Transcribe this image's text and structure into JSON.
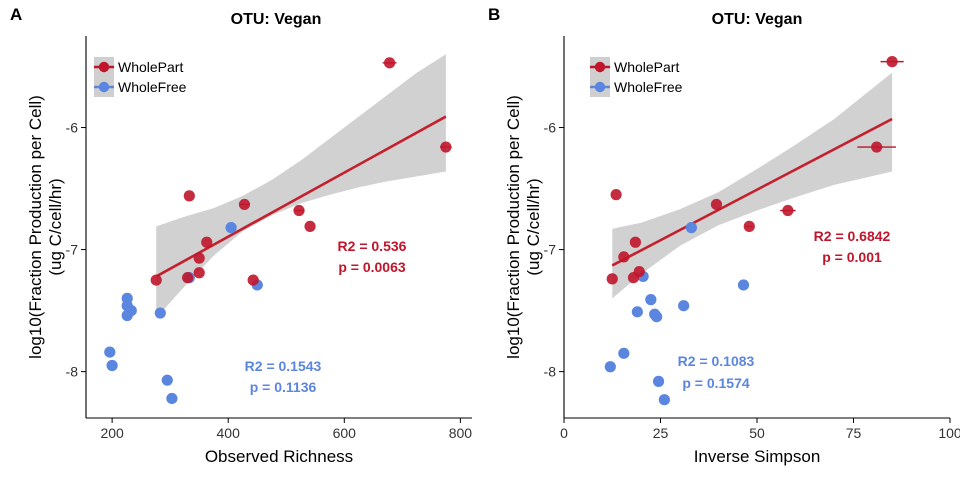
{
  "colors": {
    "part": "#c0152a",
    "free": "#5b86e0",
    "band": "#cfcfcf",
    "part_line": "#c41f2d"
  },
  "chart_data": [
    {
      "type": "scatter",
      "panel_tag": "A",
      "title": "OTU: Vegan",
      "xlabel": "Observed Richness",
      "ylabel_lines": [
        "log10(Fraction Production per Cell)",
        "(ug C/cell/hr)"
      ],
      "xlim": [
        155,
        820
      ],
      "ylim": [
        -8.38,
        -5.25
      ],
      "xticks": [
        200,
        400,
        600,
        800
      ],
      "yticks": [
        -6,
        -7,
        -8
      ],
      "legend": {
        "position": "top-left",
        "entries": [
          "WholePart",
          "WholeFree"
        ]
      },
      "series": [
        {
          "name": "WholePart",
          "color_key": "part",
          "points": [
            {
              "x": 678,
              "y": -5.47,
              "xerr": 12
            },
            {
              "x": 775,
              "y": -6.16,
              "xerr": 10
            },
            {
              "x": 333,
              "y": -6.56,
              "xerr": 0
            },
            {
              "x": 428,
              "y": -6.63,
              "xerr": 8
            },
            {
              "x": 522,
              "y": -6.68,
              "xerr": 9
            },
            {
              "x": 541,
              "y": -6.81,
              "xerr": 0
            },
            {
              "x": 363,
              "y": -6.94,
              "xerr": 0
            },
            {
              "x": 350,
              "y": -7.07,
              "xerr": 0
            },
            {
              "x": 350,
              "y": -7.19,
              "xerr": 0
            },
            {
              "x": 330,
              "y": -7.23,
              "xerr": 0
            },
            {
              "x": 276,
              "y": -7.25,
              "xerr": 0
            },
            {
              "x": 443,
              "y": -7.25,
              "xerr": 0
            }
          ],
          "fit": {
            "x": [
              276,
              775
            ],
            "y": [
              -7.22,
              -5.91
            ]
          },
          "band": {
            "x": [
              276,
              325,
              375,
              425,
              475,
              525,
              575,
              625,
              675,
              725,
              775
            ],
            "lower": [
              -7.56,
              -7.3,
              -7.05,
              -6.85,
              -6.72,
              -6.62,
              -6.55,
              -6.49,
              -6.44,
              -6.4,
              -6.36
            ],
            "upper": [
              -6.81,
              -6.73,
              -6.66,
              -6.56,
              -6.43,
              -6.27,
              -6.09,
              -5.91,
              -5.73,
              -5.55,
              -5.4
            ]
          },
          "annotation": [
            "R2 = 0.536",
            "p = 0.0063"
          ]
        },
        {
          "name": "WholeFree",
          "color_key": "free",
          "points": [
            {
              "x": 226,
              "y": -7.4
            },
            {
              "x": 226,
              "y": -7.46
            },
            {
              "x": 233,
              "y": -7.5
            },
            {
              "x": 226,
              "y": -7.54
            },
            {
              "x": 283,
              "y": -7.52
            },
            {
              "x": 196,
              "y": -7.84
            },
            {
              "x": 200,
              "y": -7.95
            },
            {
              "x": 295,
              "y": -8.07
            },
            {
              "x": 303,
              "y": -8.22
            },
            {
              "x": 333,
              "y": -7.23,
              "xerr": 8
            },
            {
              "x": 405,
              "y": -6.82,
              "xerr": 8
            },
            {
              "x": 450,
              "y": -7.29,
              "xerr": 10
            }
          ],
          "annotation": [
            "R2 = 0.1543",
            "p = 0.1136"
          ]
        }
      ]
    },
    {
      "type": "scatter",
      "panel_tag": "B",
      "title": "OTU: Vegan",
      "xlabel": "Inverse Simpson",
      "ylabel_lines": [
        "log10(Fraction Production per Cell)",
        "(ug C/cell/hr)"
      ],
      "xlim": [
        0,
        100
      ],
      "ylim": [
        -8.38,
        -5.25
      ],
      "xticks": [
        0,
        25,
        50,
        75,
        100
      ],
      "yticks": [
        -6,
        -7,
        -8
      ],
      "legend": {
        "position": "top-left",
        "entries": [
          "WholePart",
          "WholeFree"
        ]
      },
      "series": [
        {
          "name": "WholePart",
          "color_key": "part",
          "points": [
            {
              "x": 85,
              "y": -5.46,
              "xerr": 3
            },
            {
              "x": 81,
              "y": -6.16,
              "xerr": 5
            },
            {
              "x": 39.5,
              "y": -6.63,
              "xerr": 0
            },
            {
              "x": 58,
              "y": -6.68,
              "xerr": 2
            },
            {
              "x": 48,
              "y": -6.81,
              "xerr": 1
            },
            {
              "x": 18.5,
              "y": -6.94,
              "xerr": 0
            },
            {
              "x": 15.5,
              "y": -7.06,
              "xerr": 0
            },
            {
              "x": 19.5,
              "y": -7.18,
              "xerr": 0
            },
            {
              "x": 18,
              "y": -7.23,
              "xerr": 0
            },
            {
              "x": 12.5,
              "y": -7.24,
              "xerr": 0
            },
            {
              "x": 13.5,
              "y": -6.55,
              "xerr": 0
            }
          ],
          "fit": {
            "x": [
              12.5,
              85
            ],
            "y": [
              -7.13,
              -5.93
            ]
          },
          "band": {
            "x": [
              12.5,
              20,
              30,
              40,
              50,
              60,
              70,
              85
            ],
            "lower": [
              -7.4,
              -7.2,
              -6.97,
              -6.8,
              -6.68,
              -6.57,
              -6.47,
              -6.36
            ],
            "upper": [
              -6.83,
              -6.78,
              -6.67,
              -6.53,
              -6.34,
              -6.14,
              -5.93,
              -5.55
            ]
          },
          "annotation": [
            "R2 = 0.6842",
            "p = 0.001"
          ]
        },
        {
          "name": "WholeFree",
          "color_key": "free",
          "points": [
            {
              "x": 33,
              "y": -6.82,
              "xerr": 0
            },
            {
              "x": 20.5,
              "y": -7.22,
              "xerr": 0
            },
            {
              "x": 22.5,
              "y": -7.41,
              "xerr": 0
            },
            {
              "x": 19,
              "y": -7.51,
              "xerr": 0
            },
            {
              "x": 23.5,
              "y": -7.53,
              "xerr": 0
            },
            {
              "x": 24,
              "y": -7.55,
              "xerr": 0
            },
            {
              "x": 31,
              "y": -7.46,
              "xerr": 0
            },
            {
              "x": 46.5,
              "y": -7.29,
              "xerr": 0
            },
            {
              "x": 15.5,
              "y": -7.85,
              "xerr": 0
            },
            {
              "x": 12,
              "y": -7.96,
              "xerr": 0
            },
            {
              "x": 24.5,
              "y": -8.08,
              "xerr": 0
            },
            {
              "x": 26,
              "y": -8.23,
              "xerr": 0
            }
          ],
          "annotation": [
            "R2 = 0.1083",
            "p = 0.1574"
          ]
        }
      ]
    }
  ]
}
